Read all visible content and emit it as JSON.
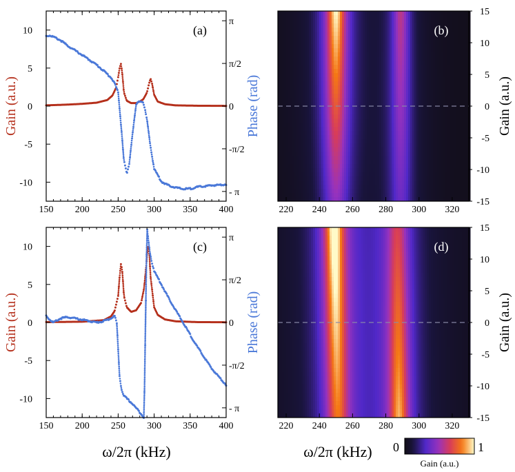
{
  "colors": {
    "gain": "#b5301c",
    "phase": "#4a78d8"
  },
  "chart_data": [
    {
      "panel": "a",
      "label": "(a)",
      "type": "scatter",
      "xlabel": "ω/2π (kHz)",
      "xlim": [
        150,
        400
      ],
      "xticks": [
        "150",
        "200",
        "250",
        "300",
        "350",
        "400"
      ],
      "ylabel_left": "Gain (a.u.)",
      "ylim_left": [
        -12.5,
        12.5
      ],
      "yticks_left": [
        "10",
        "5",
        "0",
        "-5",
        "-10"
      ],
      "ylabel_right": "Phase (rad)",
      "ylim_right": [
        -3.5,
        3.5
      ],
      "yticks_right": [
        "π",
        "π/2",
        "0",
        "- π",
        "-π/2"
      ],
      "series": [
        {
          "name": "Gain",
          "axis": "left",
          "x": [
            150,
            180,
            200,
            220,
            235,
            242,
            247,
            250,
            252,
            254,
            256,
            258,
            262,
            268,
            275,
            280,
            285,
            290,
            293,
            295,
            297,
            300,
            305,
            315,
            330,
            360,
            400
          ],
          "values": [
            0.1,
            0.2,
            0.3,
            0.45,
            0.8,
            1.4,
            2.4,
            3.8,
            5.0,
            5.6,
            4.0,
            1.8,
            0.7,
            0.4,
            0.4,
            0.6,
            0.9,
            1.8,
            3.0,
            3.6,
            3.0,
            1.5,
            0.6,
            0.25,
            0.1,
            0.05,
            0.03
          ]
        },
        {
          "name": "Phase",
          "axis": "right",
          "x": [
            150,
            155,
            160,
            170,
            180,
            200,
            220,
            230,
            240,
            245,
            250,
            255,
            258,
            262,
            265,
            270,
            275,
            280,
            285,
            290,
            295,
            300,
            310,
            320,
            330,
            340,
            350,
            360,
            380,
            400
          ],
          "values": [
            2.58,
            2.6,
            2.55,
            2.42,
            2.22,
            1.88,
            1.52,
            1.3,
            1.05,
            0.85,
            0.5,
            -1.0,
            -2.0,
            -2.5,
            -2.2,
            -1.0,
            0.05,
            0.2,
            0.15,
            -0.5,
            -1.5,
            -2.3,
            -2.78,
            -2.92,
            -3.0,
            -3.05,
            -3.04,
            -2.98,
            -2.92,
            -2.88
          ]
        }
      ]
    },
    {
      "panel": "c",
      "label": "(c)",
      "type": "scatter",
      "xlabel": "ω/2π (kHz)",
      "xlim": [
        150,
        400
      ],
      "xticks": [
        "150",
        "200",
        "250",
        "300",
        "350",
        "400"
      ],
      "ylabel_left": "Gain (a.u.)",
      "ylim_left": [
        -12.5,
        12.5
      ],
      "yticks_left": [
        "10",
        "5",
        "0",
        "-5",
        "-10"
      ],
      "ylabel_right": "Phase (rad)",
      "ylim_right": [
        -3.5,
        3.5
      ],
      "yticks_right": [
        "π",
        "π/2",
        "0",
        "- π",
        "-π/2"
      ],
      "series": [
        {
          "name": "Gain",
          "axis": "left",
          "x": [
            150,
            200,
            230,
            240,
            245,
            250,
            252,
            254,
            256,
            258,
            262,
            268,
            275,
            282,
            286,
            289,
            291,
            293,
            295,
            300,
            305,
            315,
            330,
            360,
            400
          ],
          "values": [
            0.05,
            0.1,
            0.3,
            0.8,
            1.5,
            3.5,
            6.0,
            7.8,
            6.5,
            3.5,
            2.0,
            1.4,
            1.6,
            2.6,
            4.5,
            7.5,
            10.0,
            9.5,
            6.0,
            2.0,
            1.0,
            0.4,
            0.15,
            0.05,
            0.03
          ]
        },
        {
          "name": "Phase",
          "axis": "right",
          "x": [
            150,
            155,
            160,
            170,
            180,
            190,
            200,
            210,
            220,
            230,
            240,
            245,
            248,
            250,
            252,
            255,
            258,
            262,
            270,
            280,
            286,
            290,
            292,
            294,
            296,
            300,
            310,
            320,
            340,
            360,
            380,
            400
          ],
          "values": [
            0.25,
            0.1,
            0.0,
            0.15,
            0.2,
            0.15,
            0.1,
            0.05,
            0.0,
            0.05,
            0.15,
            0.25,
            0.0,
            -1.0,
            -2.0,
            -2.5,
            -2.7,
            -2.8,
            -3.0,
            -3.3,
            -3.5,
            3.5,
            3.0,
            2.6,
            2.3,
            1.9,
            1.4,
            0.9,
            0.0,
            -0.9,
            -1.7,
            -2.3
          ]
        }
      ]
    },
    {
      "panel": "b",
      "label": "(b)",
      "type": "heatmap",
      "xlabel": "ω/2π (kHz)",
      "xlim": [
        215,
        330
      ],
      "xticks": [
        "220",
        "240",
        "260",
        "280",
        "300",
        "320"
      ],
      "ylabel": "Gain (a.u.)",
      "ylim": [
        -15,
        15
      ],
      "yticks": [
        "15",
        "10",
        "5",
        "0",
        "-5",
        "-10",
        "-15"
      ],
      "peaks_top": [
        {
          "x": 250,
          "amplitude": 1.0,
          "width": 6
        },
        {
          "x": 289,
          "amplitude": 0.55,
          "width": 5
        }
      ],
      "peaks_bottom": [
        {
          "x": 250,
          "amplitude": 0.45,
          "width": 8
        },
        {
          "x": 289,
          "amplitude": 0.35,
          "width": 7
        }
      ],
      "dashed_line_y": 0
    },
    {
      "panel": "d",
      "label": "(d)",
      "type": "heatmap",
      "xlabel": "ω/2π (kHz)",
      "xlim": [
        215,
        330
      ],
      "xticks": [
        "220",
        "240",
        "260",
        "280",
        "300",
        "320"
      ],
      "ylabel": "Gain (a.u.)",
      "ylim": [
        -15,
        15
      ],
      "yticks": [
        "15",
        "10",
        "5",
        "0",
        "-5",
        "-10",
        "-15"
      ],
      "peaks_top": [
        {
          "x": 249,
          "amplitude": 1.0,
          "width": 6
        },
        {
          "x": 287,
          "amplitude": 0.55,
          "width": 7
        }
      ],
      "peaks_bottom": [
        {
          "x": 251,
          "amplitude": 0.7,
          "width": 7
        },
        {
          "x": 288,
          "amplitude": 0.8,
          "width": 6
        }
      ],
      "background": 0.12,
      "dashed_line_y": 0
    }
  ],
  "colorbar": {
    "min_label": "0",
    "max_label": "1",
    "label": "Gain (a.u.)"
  },
  "xlabel_bottom_left": "ω/2π (kHz)",
  "xlabel_bottom_right": "ω/2π (kHz)"
}
